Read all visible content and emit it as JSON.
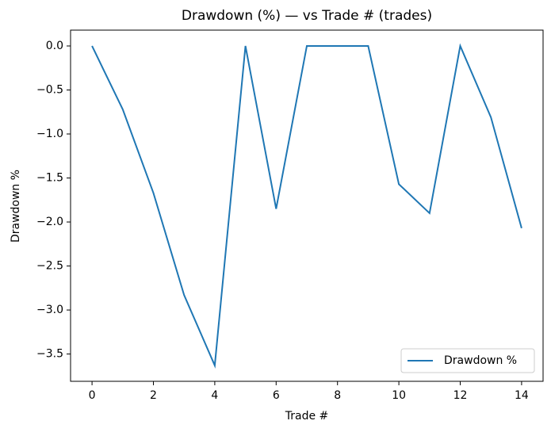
{
  "chart_data": {
    "type": "line",
    "title": "Drawdown (%) — vs Trade # (trades)",
    "x_label": "Trade #",
    "y_label": "Drawdown %",
    "x": [
      0,
      1,
      2,
      3,
      4,
      5,
      6,
      7,
      8,
      9,
      10,
      11,
      12,
      13,
      14
    ],
    "series": [
      {
        "name": "Drawdown %",
        "color": "#1f77b4",
        "values": [
          0,
          -0.72,
          -1.67,
          -2.83,
          -3.63,
          0,
          -1.85,
          0,
          0,
          0,
          -1.57,
          -1.9,
          0,
          -0.81,
          -2.07
        ]
      }
    ],
    "xlim": [
      -0.7,
      14.7
    ],
    "xticks": [
      0,
      2,
      4,
      6,
      8,
      10,
      12,
      14
    ],
    "ylim": [
      -3.81,
      0.18
    ],
    "yticks": [
      {
        "value": 0,
        "label": "0.0"
      },
      {
        "value": -0.5,
        "label": "−0.5"
      },
      {
        "value": -1,
        "label": "−1.0"
      },
      {
        "value": -1.5,
        "label": "−1.5"
      },
      {
        "value": -2,
        "label": "−2.0"
      },
      {
        "value": -2.5,
        "label": "−2.5"
      },
      {
        "value": -3,
        "label": "−3.0"
      },
      {
        "value": -3.5,
        "label": "−3.5"
      }
    ],
    "legend": "lower right",
    "grid": false
  }
}
